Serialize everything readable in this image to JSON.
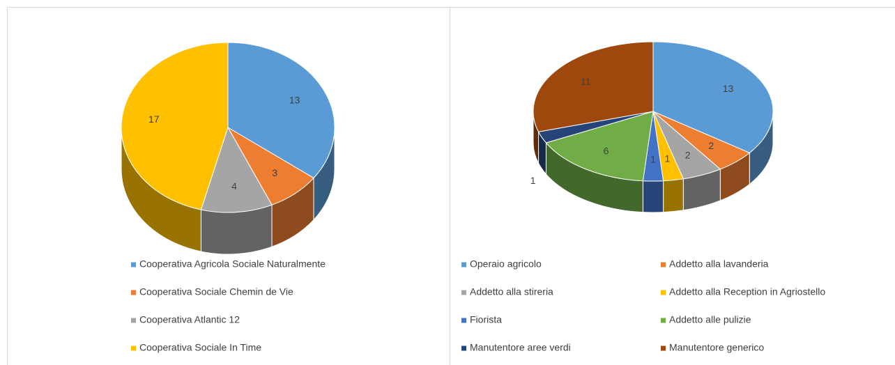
{
  "chart_data": [
    {
      "type": "pie",
      "categories": [
        "Cooperativa Agricola Sociale Naturalmente",
        "Cooperativa Sociale Chemin de Vie",
        "Cooperativa Atlantic 12",
        "Cooperativa Sociale In Time"
      ],
      "values": [
        13,
        3,
        4,
        17
      ],
      "colors": [
        "#5b9bd5",
        "#ed7d31",
        "#a5a5a5",
        "#ffc000"
      ]
    },
    {
      "type": "pie",
      "categories": [
        "Operaio agricolo",
        "Addetto alla lavanderia",
        "Addetto alla stireria",
        "Addetto alla Reception in Agriostello",
        "Fiorista",
        "Addetto alle pulizie",
        "Manutentore aree verdi",
        "Manutentore generico"
      ],
      "values": [
        13,
        2,
        2,
        1,
        1,
        6,
        1,
        11
      ],
      "colors": [
        "#5b9bd5",
        "#ed7d31",
        "#a5a5a5",
        "#ffc000",
        "#4472c4",
        "#70ad47",
        "#264478",
        "#9e480e"
      ]
    }
  ]
}
